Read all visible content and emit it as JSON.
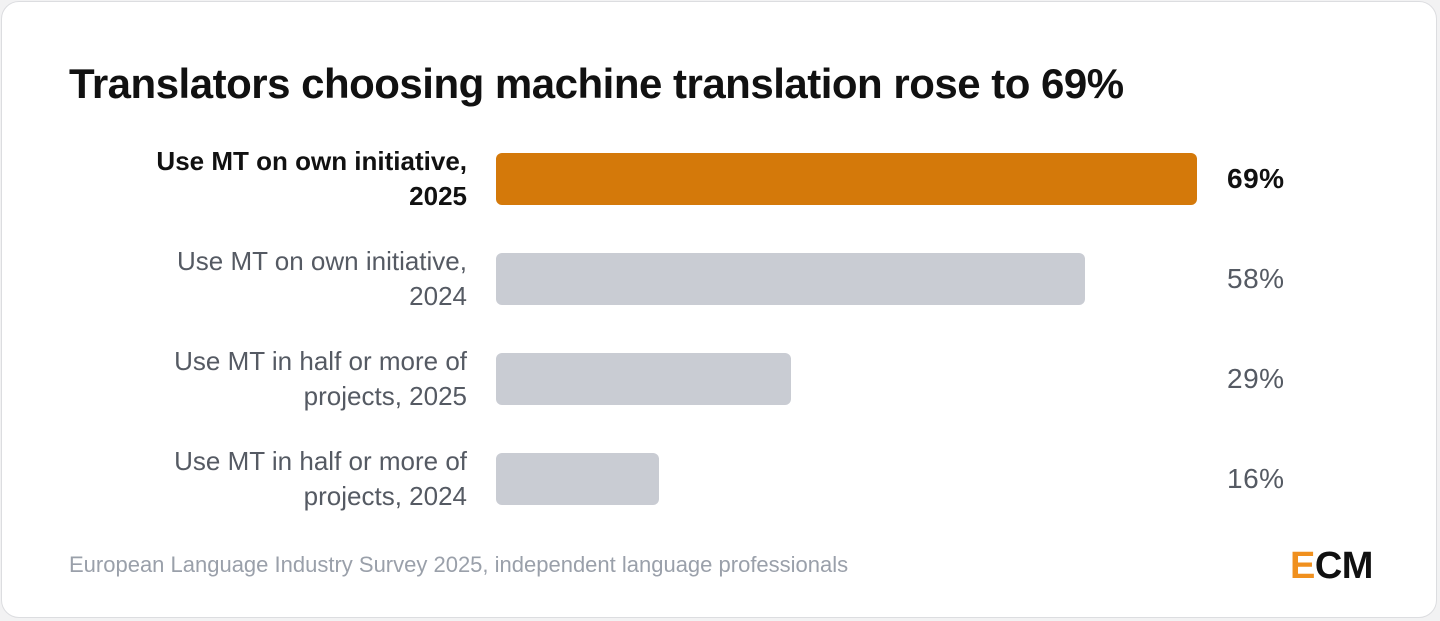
{
  "title": "Translators choosing machine translation rose to 69%",
  "footer": "European Language Industry Survey 2025, independent language professionals",
  "logo": {
    "first": "E",
    "rest": "CM"
  },
  "colors": {
    "highlight": "#d4790a",
    "default": "#c9ccd3",
    "logo_accent": "#f0901e"
  },
  "chart_data": {
    "type": "bar",
    "orientation": "horizontal",
    "categories": [
      [
        "Use MT on own initiative,",
        "2025"
      ],
      [
        "Use MT on own initiative,",
        "2024"
      ],
      [
        "Use MT in half or more of",
        "projects, 2025"
      ],
      [
        "Use MT in half or more of",
        "projects, 2024"
      ]
    ],
    "values": [
      69,
      58,
      29,
      16
    ],
    "value_labels": [
      "69%",
      "58%",
      "29%",
      "16%"
    ],
    "highlight": [
      true,
      false,
      false,
      false
    ],
    "xlim": [
      0,
      69
    ]
  }
}
